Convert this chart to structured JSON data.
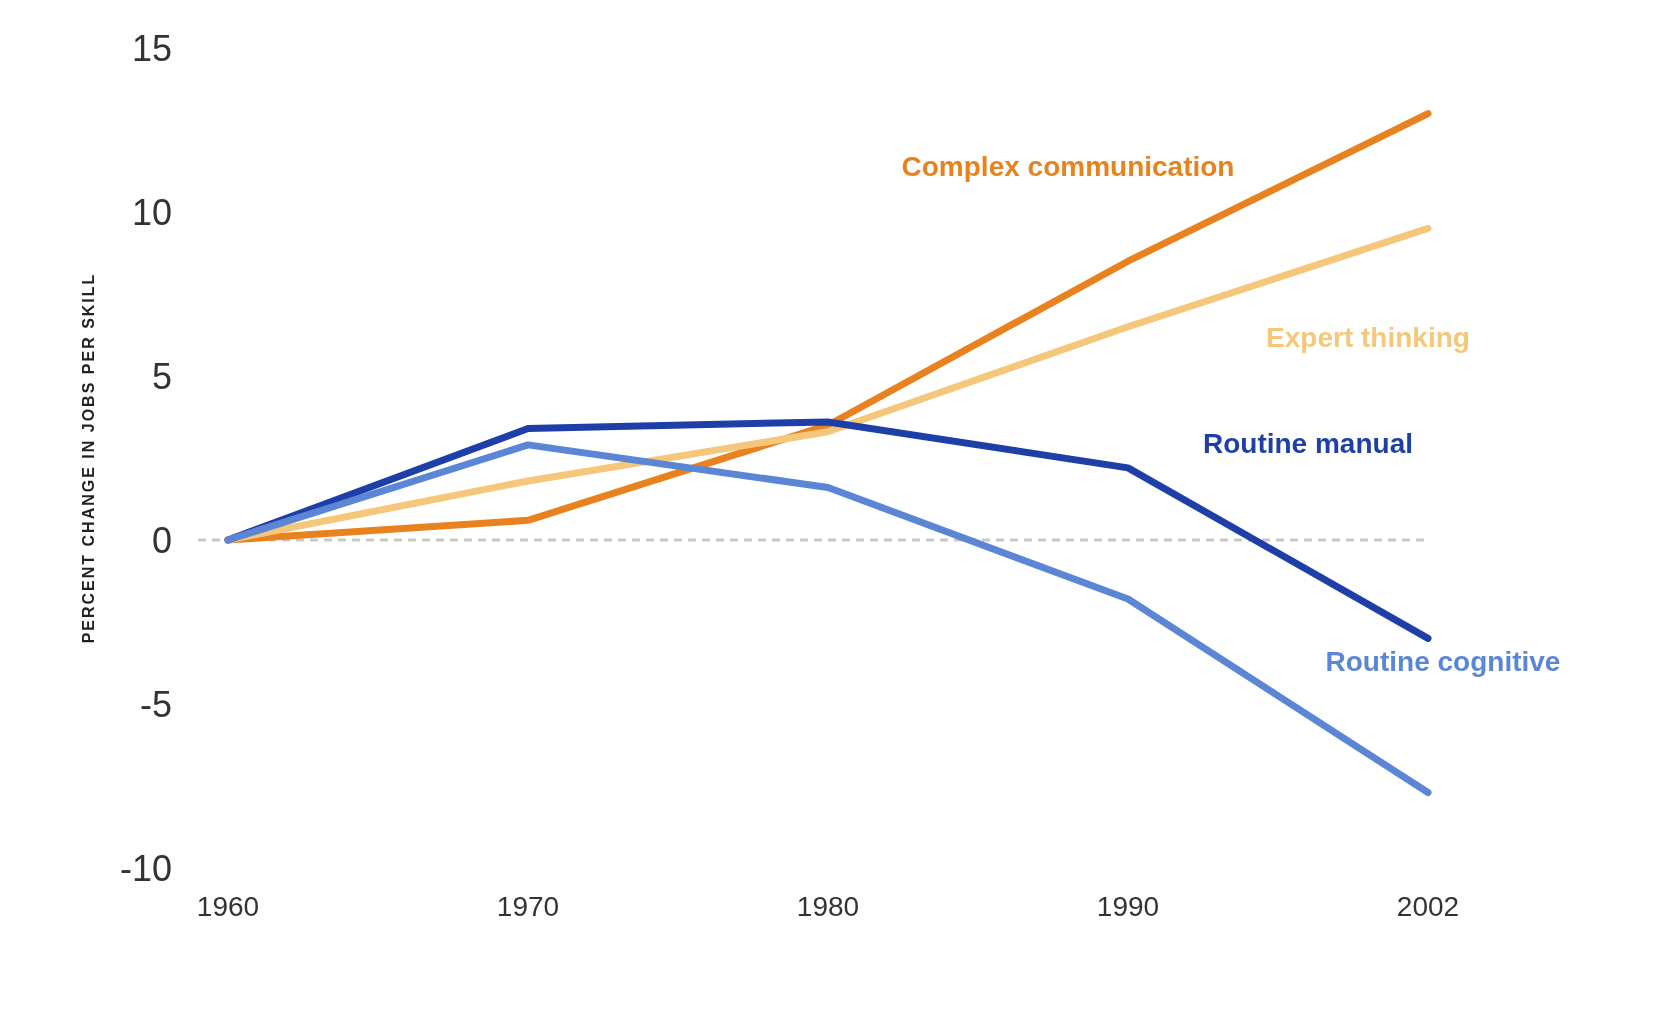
{
  "chart_data": {
    "type": "line",
    "ylabel": "PERCENT CHANGE IN JOBS PER SKILL",
    "categories": [
      "1960",
      "1970",
      "1980",
      "1990",
      "2002"
    ],
    "series": [
      {
        "name": "Complex communication",
        "color": "#e8821e",
        "values": [
          0,
          0.6,
          3.5,
          8.5,
          13
        ]
      },
      {
        "name": "Expert thinking",
        "color": "#f5c77a",
        "values": [
          0,
          1.8,
          3.3,
          6.5,
          9.5
        ]
      },
      {
        "name": "Routine manual",
        "color": "#1f3fa8",
        "values": [
          0,
          3.4,
          3.6,
          2.2,
          -3
        ]
      },
      {
        "name": "Routine cognitive",
        "color": "#5b86d6",
        "values": [
          0,
          2.9,
          1.6,
          -1.8,
          -7.7
        ]
      }
    ],
    "ylim": [
      -10,
      15
    ],
    "yticks": [
      -10,
      -5,
      0,
      5,
      10,
      15
    ],
    "grid": false,
    "legend": false,
    "marker": "none",
    "line_style": "solid",
    "ref_lines": [
      {
        "axis": "y",
        "value": 0,
        "color": "#c8c8c8",
        "line_style": "dashed"
      }
    ]
  }
}
